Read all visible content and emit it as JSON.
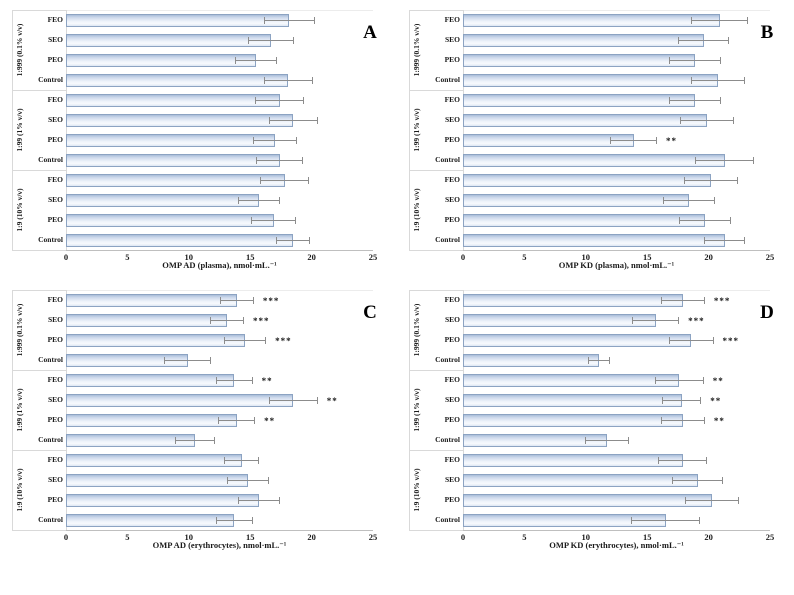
{
  "figure": {
    "description": "Four-panel scientific figure of horizontal bar charts with error bars and significance asterisks",
    "panel_letters": [
      "A",
      "B",
      "C",
      "D"
    ]
  },
  "style": {
    "background": "#ffffff",
    "bar_fill_top": "#a9bdd9",
    "bar_fill_light": "#eef3fa",
    "bar_fill_bottom": "#dde6f3",
    "bar_border": "#8ca3c2",
    "error_bar": "#8c8c8c",
    "axis_line": "#bfbfbf",
    "separator_line": "#d9d9d9",
    "text": "#1a1a1a"
  },
  "chart_data": [
    {
      "type": "bar",
      "orientation": "horizontal",
      "panel": "A",
      "xlabel": "OMP AD (plasma), nmol·mL.⁻¹",
      "xlim": [
        0,
        25
      ],
      "xticks": [
        "0",
        "5",
        "10",
        "15",
        "20",
        "25"
      ],
      "legend": "none",
      "grid": "off",
      "categories": [
        "FEO",
        "SEO",
        "PEO",
        "Control"
      ],
      "groups": [
        {
          "label": "1:999 (0.1% v/v)",
          "bars": [
            {
              "category": "FEO",
              "value": 18.2,
              "err": 2.1,
              "sig": ""
            },
            {
              "category": "SEO",
              "value": 16.7,
              "err": 1.9,
              "sig": ""
            },
            {
              "category": "PEO",
              "value": 15.5,
              "err": 1.7,
              "sig": ""
            },
            {
              "category": "Control",
              "value": 18.1,
              "err": 2.0,
              "sig": ""
            }
          ]
        },
        {
          "label": "1:99 (1% v/v)",
          "bars": [
            {
              "category": "FEO",
              "value": 17.4,
              "err": 2.0,
              "sig": ""
            },
            {
              "category": "SEO",
              "value": 18.5,
              "err": 2.0,
              "sig": ""
            },
            {
              "category": "PEO",
              "value": 17.0,
              "err": 1.8,
              "sig": ""
            },
            {
              "category": "Control",
              "value": 17.4,
              "err": 1.9,
              "sig": ""
            }
          ]
        },
        {
          "label": "1:9 (10% v/v)",
          "bars": [
            {
              "category": "FEO",
              "value": 17.8,
              "err": 2.0,
              "sig": ""
            },
            {
              "category": "SEO",
              "value": 15.7,
              "err": 1.7,
              "sig": ""
            },
            {
              "category": "PEO",
              "value": 16.9,
              "err": 1.8,
              "sig": ""
            },
            {
              "category": "Control",
              "value": 18.5,
              "err": 1.4,
              "sig": ""
            }
          ]
        }
      ]
    },
    {
      "type": "bar",
      "orientation": "horizontal",
      "panel": "B",
      "xlabel": "OMP KD (plasma), nmol·mL.⁻¹",
      "xlim": [
        0,
        25
      ],
      "xticks": [
        "0",
        "5",
        "10",
        "15",
        "20",
        "25"
      ],
      "legend": "none",
      "grid": "off",
      "categories": [
        "FEO",
        "SEO",
        "PEO",
        "Control"
      ],
      "groups": [
        {
          "label": "1:999 (0.1% v/v)",
          "bars": [
            {
              "category": "FEO",
              "value": 20.9,
              "err": 2.3,
              "sig": ""
            },
            {
              "category": "SEO",
              "value": 19.6,
              "err": 2.1,
              "sig": ""
            },
            {
              "category": "PEO",
              "value": 18.9,
              "err": 2.1,
              "sig": ""
            },
            {
              "category": "Control",
              "value": 20.8,
              "err": 2.2,
              "sig": ""
            }
          ]
        },
        {
          "label": "1:99 (1% v/v)",
          "bars": [
            {
              "category": "FEO",
              "value": 18.9,
              "err": 2.1,
              "sig": ""
            },
            {
              "category": "SEO",
              "value": 19.9,
              "err": 2.2,
              "sig": ""
            },
            {
              "category": "PEO",
              "value": 13.9,
              "err": 1.9,
              "sig": "**"
            },
            {
              "category": "Control",
              "value": 21.3,
              "err": 2.4,
              "sig": ""
            }
          ]
        },
        {
          "label": "1:9 (10% v/v)",
          "bars": [
            {
              "category": "FEO",
              "value": 20.2,
              "err": 2.2,
              "sig": ""
            },
            {
              "category": "SEO",
              "value": 18.4,
              "err": 2.1,
              "sig": ""
            },
            {
              "category": "PEO",
              "value": 19.7,
              "err": 2.1,
              "sig": ""
            },
            {
              "category": "Control",
              "value": 21.3,
              "err": 1.7,
              "sig": ""
            }
          ]
        }
      ]
    },
    {
      "type": "bar",
      "orientation": "horizontal",
      "panel": "C",
      "xlabel": "OMP AD (erythrocytes), nmol·mL.⁻¹",
      "xlim": [
        0,
        25
      ],
      "xticks": [
        "0",
        "5",
        "10",
        "15",
        "20",
        "25"
      ],
      "legend": "none",
      "grid": "off",
      "categories": [
        "FEO",
        "SEO",
        "PEO",
        "Control"
      ],
      "groups": [
        {
          "label": "1:999 (0.1% v/v)",
          "bars": [
            {
              "category": "FEO",
              "value": 13.9,
              "err": 1.4,
              "sig": "***"
            },
            {
              "category": "SEO",
              "value": 13.1,
              "err": 1.4,
              "sig": "***"
            },
            {
              "category": "PEO",
              "value": 14.6,
              "err": 1.7,
              "sig": "***"
            },
            {
              "category": "Control",
              "value": 9.9,
              "err": 1.9,
              "sig": ""
            }
          ]
        },
        {
          "label": "1:99 (1% v/v)",
          "bars": [
            {
              "category": "FEO",
              "value": 13.7,
              "err": 1.5,
              "sig": "**"
            },
            {
              "category": "SEO",
              "value": 18.5,
              "err": 2.0,
              "sig": "**"
            },
            {
              "category": "PEO",
              "value": 13.9,
              "err": 1.5,
              "sig": "**"
            },
            {
              "category": "Control",
              "value": 10.5,
              "err": 1.6,
              "sig": ""
            }
          ]
        },
        {
          "label": "1:9 (10% v/v)",
          "bars": [
            {
              "category": "FEO",
              "value": 14.3,
              "err": 1.4,
              "sig": ""
            },
            {
              "category": "SEO",
              "value": 14.8,
              "err": 1.7,
              "sig": ""
            },
            {
              "category": "PEO",
              "value": 15.7,
              "err": 1.7,
              "sig": ""
            },
            {
              "category": "Control",
              "value": 13.7,
              "err": 1.5,
              "sig": ""
            }
          ]
        }
      ]
    },
    {
      "type": "bar",
      "orientation": "horizontal",
      "panel": "D",
      "xlabel": "OMP KD (erythrocytes), nmol·mL.⁻¹",
      "xlim": [
        0,
        25
      ],
      "xticks": [
        "0",
        "5",
        "10",
        "15",
        "20",
        "25"
      ],
      "legend": "none",
      "grid": "off",
      "categories": [
        "FEO",
        "SEO",
        "PEO",
        "Control"
      ],
      "groups": [
        {
          "label": "1:999 (0.1% v/v)",
          "bars": [
            {
              "category": "FEO",
              "value": 17.9,
              "err": 1.8,
              "sig": "***"
            },
            {
              "category": "SEO",
              "value": 15.7,
              "err": 1.9,
              "sig": "***"
            },
            {
              "category": "PEO",
              "value": 18.6,
              "err": 1.8,
              "sig": "***"
            },
            {
              "category": "Control",
              "value": 11.1,
              "err": 0.9,
              "sig": ""
            }
          ]
        },
        {
          "label": "1:99 (1% v/v)",
          "bars": [
            {
              "category": "FEO",
              "value": 17.6,
              "err": 2.0,
              "sig": "**"
            },
            {
              "category": "SEO",
              "value": 17.8,
              "err": 1.6,
              "sig": "**"
            },
            {
              "category": "PEO",
              "value": 17.9,
              "err": 1.8,
              "sig": "**"
            },
            {
              "category": "Control",
              "value": 11.7,
              "err": 1.8,
              "sig": ""
            }
          ]
        },
        {
          "label": "1:9 (10% v/v)",
          "bars": [
            {
              "category": "FEO",
              "value": 17.9,
              "err": 2.0,
              "sig": ""
            },
            {
              "category": "SEO",
              "value": 19.1,
              "err": 2.1,
              "sig": ""
            },
            {
              "category": "PEO",
              "value": 20.3,
              "err": 2.2,
              "sig": ""
            },
            {
              "category": "Control",
              "value": 16.5,
              "err": 2.8,
              "sig": ""
            }
          ]
        }
      ]
    }
  ]
}
